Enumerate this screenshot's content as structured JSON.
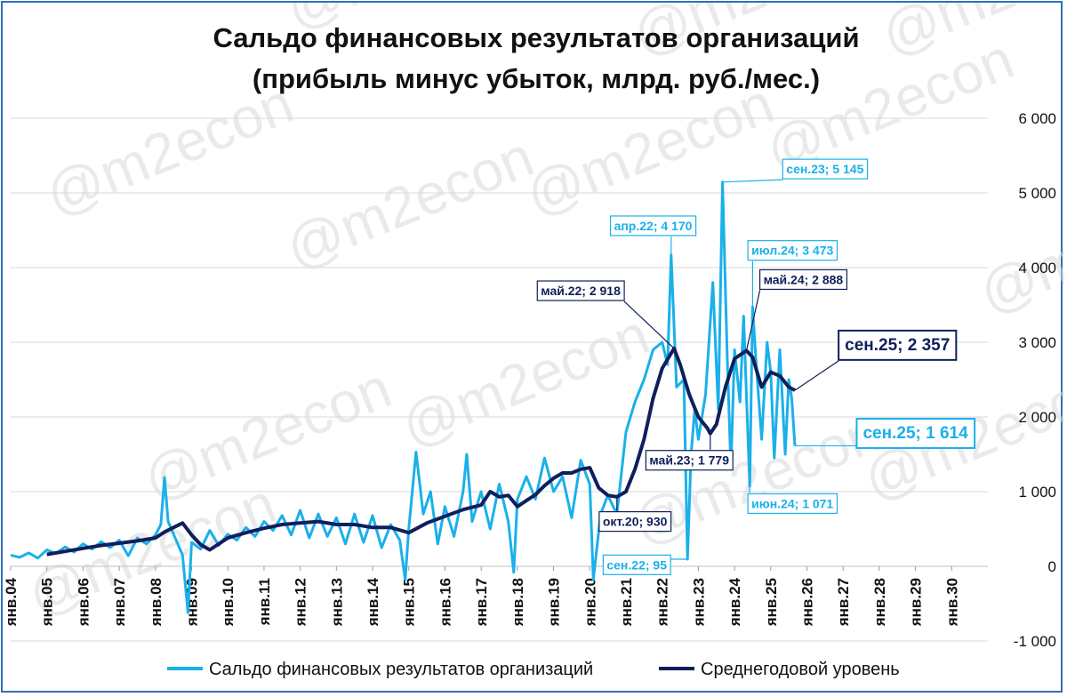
{
  "chart_data": {
    "type": "line",
    "title": "Сальдо финансовых результатов организаций",
    "subtitle": "(прибыль минус убыток, млрд. руб./мес.)",
    "watermark": "@m2econ",
    "ylim": [
      -1000,
      6000
    ],
    "yticks": [
      -1000,
      0,
      1000,
      2000,
      3000,
      4000,
      5000,
      6000
    ],
    "ytick_labels": [
      "-1 000",
      "0",
      "1 000",
      "2 000",
      "3 000",
      "4 000",
      "5 000",
      "6 000"
    ],
    "xlim": [
      2004.0,
      2031.0
    ],
    "xtick_labels": [
      "янв.04",
      "янв.05",
      "янв.06",
      "янв.07",
      "янв.08",
      "янв.09",
      "янв.10",
      "янв.11",
      "янв.12",
      "янв.13",
      "янв.14",
      "янв.15",
      "янв.16",
      "янв.17",
      "янв.18",
      "янв.19",
      "янв.20",
      "янв.21",
      "янв.22",
      "янв.23",
      "янв.24",
      "янв.25",
      "янв.26",
      "янв.27",
      "янв.28",
      "янв.29",
      "янв.30"
    ],
    "y_axis_position": "right",
    "grid": "horizontal",
    "legend_position": "bottom",
    "colors": {
      "series1": "#1ab0ea",
      "series2": "#0f1f5c"
    },
    "series": [
      {
        "name": "Сальдо финансовых результатов организаций",
        "points": [
          [
            2004.0,
            150
          ],
          [
            2004.25,
            120
          ],
          [
            2004.5,
            180
          ],
          [
            2004.75,
            110
          ],
          [
            2005.0,
            220
          ],
          [
            2005.25,
            170
          ],
          [
            2005.5,
            260
          ],
          [
            2005.75,
            190
          ],
          [
            2006.0,
            300
          ],
          [
            2006.25,
            230
          ],
          [
            2006.5,
            330
          ],
          [
            2006.75,
            250
          ],
          [
            2007.0,
            350
          ],
          [
            2007.25,
            140
          ],
          [
            2007.5,
            380
          ],
          [
            2007.75,
            300
          ],
          [
            2008.0,
            420
          ],
          [
            2008.15,
            560
          ],
          [
            2008.25,
            1190
          ],
          [
            2008.35,
            600
          ],
          [
            2008.5,
            430
          ],
          [
            2008.75,
            150
          ],
          [
            2008.9,
            -620
          ],
          [
            2009.0,
            320
          ],
          [
            2009.25,
            230
          ],
          [
            2009.5,
            480
          ],
          [
            2009.75,
            280
          ],
          [
            2010.0,
            430
          ],
          [
            2010.25,
            350
          ],
          [
            2010.5,
            520
          ],
          [
            2010.75,
            400
          ],
          [
            2011.0,
            600
          ],
          [
            2011.25,
            480
          ],
          [
            2011.5,
            680
          ],
          [
            2011.75,
            420
          ],
          [
            2012.0,
            750
          ],
          [
            2012.25,
            380
          ],
          [
            2012.5,
            700
          ],
          [
            2012.75,
            400
          ],
          [
            2013.0,
            650
          ],
          [
            2013.25,
            300
          ],
          [
            2013.5,
            700
          ],
          [
            2013.75,
            320
          ],
          [
            2014.0,
            680
          ],
          [
            2014.25,
            250
          ],
          [
            2014.5,
            560
          ],
          [
            2014.75,
            350
          ],
          [
            2014.9,
            -180
          ],
          [
            2015.0,
            500
          ],
          [
            2015.2,
            1530
          ],
          [
            2015.4,
            700
          ],
          [
            2015.6,
            1000
          ],
          [
            2015.8,
            300
          ],
          [
            2016.0,
            800
          ],
          [
            2016.25,
            400
          ],
          [
            2016.5,
            1000
          ],
          [
            2016.6,
            1500
          ],
          [
            2016.75,
            600
          ],
          [
            2017.0,
            1000
          ],
          [
            2017.25,
            500
          ],
          [
            2017.5,
            1100
          ],
          [
            2017.75,
            600
          ],
          [
            2017.9,
            -80
          ],
          [
            2018.0,
            900
          ],
          [
            2018.25,
            1200
          ],
          [
            2018.5,
            900
          ],
          [
            2018.75,
            1450
          ],
          [
            2019.0,
            1000
          ],
          [
            2019.25,
            1200
          ],
          [
            2019.5,
            650
          ],
          [
            2019.75,
            1420
          ],
          [
            2020.0,
            1100
          ],
          [
            2020.1,
            -180
          ],
          [
            2020.3,
            700
          ],
          [
            2020.5,
            950
          ],
          [
            2020.75,
            700
          ],
          [
            2021.0,
            1800
          ],
          [
            2021.25,
            2200
          ],
          [
            2021.5,
            2500
          ],
          [
            2021.75,
            2900
          ],
          [
            2022.0,
            3000
          ],
          [
            2022.15,
            2700
          ],
          [
            2022.25,
            4170
          ],
          [
            2022.4,
            2400
          ],
          [
            2022.6,
            2500
          ],
          [
            2022.7,
            95
          ],
          [
            2022.8,
            1500
          ],
          [
            2022.9,
            2100
          ],
          [
            2023.0,
            1700
          ],
          [
            2023.2,
            2300
          ],
          [
            2023.4,
            3800
          ],
          [
            2023.55,
            2100
          ],
          [
            2023.67,
            5145
          ],
          [
            2023.8,
            2800
          ],
          [
            2023.9,
            1300
          ],
          [
            2024.0,
            2900
          ],
          [
            2024.15,
            2200
          ],
          [
            2024.25,
            3350
          ],
          [
            2024.42,
            1071
          ],
          [
            2024.5,
            3473
          ],
          [
            2024.6,
            2700
          ],
          [
            2024.75,
            1700
          ],
          [
            2024.9,
            3000
          ],
          [
            2025.0,
            2600
          ],
          [
            2025.1,
            1450
          ],
          [
            2025.25,
            2900
          ],
          [
            2025.4,
            1500
          ],
          [
            2025.5,
            2500
          ],
          [
            2025.58,
            2250
          ],
          [
            2025.67,
            1614
          ]
        ]
      },
      {
        "name": "Среднегодовой уровень",
        "points": [
          [
            2005.0,
            160
          ],
          [
            2005.5,
            200
          ],
          [
            2006.0,
            240
          ],
          [
            2006.5,
            280
          ],
          [
            2007.0,
            310
          ],
          [
            2007.5,
            340
          ],
          [
            2008.0,
            380
          ],
          [
            2008.25,
            460
          ],
          [
            2008.5,
            520
          ],
          [
            2008.75,
            580
          ],
          [
            2009.0,
            420
          ],
          [
            2009.25,
            290
          ],
          [
            2009.5,
            220
          ],
          [
            2009.75,
            300
          ],
          [
            2010.0,
            380
          ],
          [
            2010.5,
            450
          ],
          [
            2011.0,
            510
          ],
          [
            2011.5,
            560
          ],
          [
            2012.0,
            580
          ],
          [
            2012.5,
            600
          ],
          [
            2013.0,
            560
          ],
          [
            2013.5,
            560
          ],
          [
            2014.0,
            520
          ],
          [
            2014.5,
            520
          ],
          [
            2015.0,
            450
          ],
          [
            2015.5,
            580
          ],
          [
            2016.0,
            670
          ],
          [
            2016.5,
            760
          ],
          [
            2017.0,
            820
          ],
          [
            2017.25,
            1000
          ],
          [
            2017.5,
            930
          ],
          [
            2017.75,
            950
          ],
          [
            2018.0,
            800
          ],
          [
            2018.25,
            880
          ],
          [
            2018.5,
            960
          ],
          [
            2018.75,
            1080
          ],
          [
            2019.0,
            1180
          ],
          [
            2019.25,
            1250
          ],
          [
            2019.5,
            1250
          ],
          [
            2019.75,
            1300
          ],
          [
            2020.0,
            1320
          ],
          [
            2020.25,
            1050
          ],
          [
            2020.5,
            950
          ],
          [
            2020.75,
            930
          ],
          [
            2021.0,
            1000
          ],
          [
            2021.25,
            1300
          ],
          [
            2021.5,
            1700
          ],
          [
            2021.75,
            2250
          ],
          [
            2022.0,
            2650
          ],
          [
            2022.33,
            2918
          ],
          [
            2022.5,
            2700
          ],
          [
            2022.75,
            2300
          ],
          [
            2023.0,
            2000
          ],
          [
            2023.25,
            1850
          ],
          [
            2023.33,
            1779
          ],
          [
            2023.5,
            1900
          ],
          [
            2023.75,
            2400
          ],
          [
            2024.0,
            2780
          ],
          [
            2024.33,
            2888
          ],
          [
            2024.5,
            2800
          ],
          [
            2024.75,
            2400
          ],
          [
            2025.0,
            2600
          ],
          [
            2025.25,
            2550
          ],
          [
            2025.5,
            2400
          ],
          [
            2025.67,
            2357
          ]
        ]
      }
    ],
    "annotations": [
      {
        "label": "сен.23; 5 145",
        "x": 2023.67,
        "y": 5145,
        "series": 0,
        "bx": 2026.5,
        "by": 5320,
        "size": 14
      },
      {
        "label": "апр.22; 4 170",
        "x": 2022.25,
        "y": 4170,
        "series": 0,
        "bx": 2021.75,
        "by": 4560,
        "size": 14
      },
      {
        "label": "июл.24; 3 473",
        "x": 2024.5,
        "y": 3473,
        "series": 0,
        "bx": 2025.6,
        "by": 4230,
        "size": 14
      },
      {
        "label": "май.24; 2 888",
        "x": 2024.33,
        "y": 2888,
        "series": 1,
        "bx": 2025.9,
        "by": 3840,
        "size": 14
      },
      {
        "label": "май.22; 2 918",
        "x": 2022.33,
        "y": 2918,
        "series": 1,
        "bx": 2019.75,
        "by": 3690,
        "size": 14
      },
      {
        "label": "сен.25; 2 357",
        "x": 2025.67,
        "y": 2357,
        "series": 1,
        "bx": 2028.5,
        "by": 2960,
        "size": 19
      },
      {
        "label": "сен.25; 1 614",
        "x": 2025.67,
        "y": 1614,
        "series": 0,
        "bx": 2029.0,
        "by": 1780,
        "size": 19
      },
      {
        "label": "май.23; 1 779",
        "x": 2023.33,
        "y": 1779,
        "series": 1,
        "bx": 2022.75,
        "by": 1420,
        "size": 14
      },
      {
        "label": "окт.20; 930",
        "x": 2020.75,
        "y": 930,
        "series": 1,
        "bx": 2021.25,
        "by": 600,
        "size": 14
      },
      {
        "label": "июн.24; 1 071",
        "x": 2024.42,
        "y": 1071,
        "series": 0,
        "bx": 2025.6,
        "by": 840,
        "size": 14
      },
      {
        "label": "сен.22; 95",
        "x": 2022.7,
        "y": 95,
        "series": 0,
        "bx": 2021.3,
        "by": 20,
        "size": 14
      }
    ]
  }
}
